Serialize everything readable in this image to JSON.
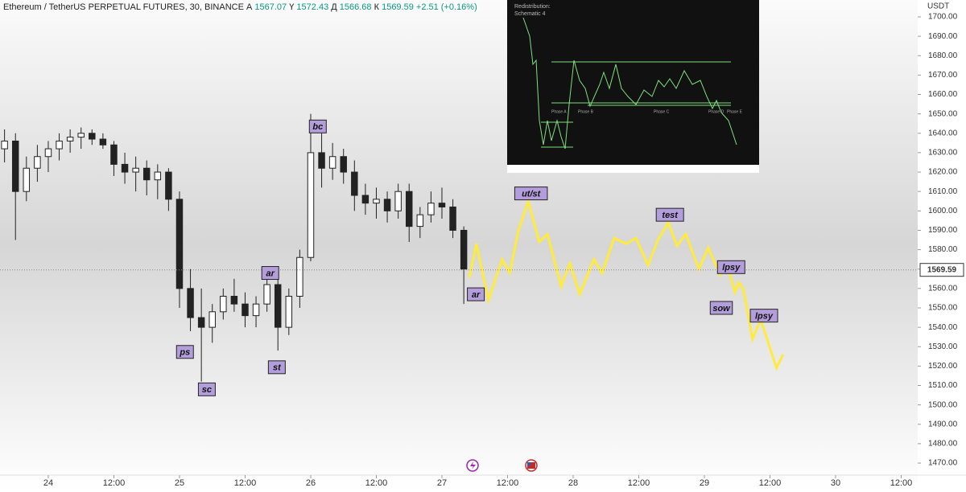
{
  "header": {
    "symbol": "Ethereum / TetherUS PERPETUAL FUTURES, 30, BINANCE",
    "fields": [
      {
        "label": "А",
        "value": 1567.07
      },
      {
        "label": "Ү",
        "value": 1572.43
      },
      {
        "label": "Д",
        "value": 1566.68
      },
      {
        "label": "К",
        "value": 1569.59
      }
    ],
    "change": "+2.51 (+0.16%)"
  },
  "inset": {
    "title_lines": [
      "Redistribution:",
      "Schematic 4"
    ],
    "phases": [
      "Phase A",
      "Phase B",
      "Phase C",
      "Phase D",
      "Phase E"
    ]
  },
  "chart_data": {
    "type": "candlestick",
    "currency": "USDT",
    "last_price": 1569.59,
    "x": [
      -8,
      -6,
      -4,
      -2,
      0,
      2,
      4,
      6,
      8,
      10,
      12,
      14,
      16,
      18,
      20,
      22,
      24,
      26,
      28,
      30,
      32,
      34,
      36,
      38,
      40,
      42,
      44,
      46,
      48,
      50,
      52,
      54,
      56,
      58,
      60,
      62,
      64,
      66,
      68,
      70,
      72,
      74,
      76
    ],
    "open": [
      1632,
      1636,
      1610,
      1622,
      1628,
      1632,
      1636,
      1638,
      1640,
      1637,
      1634,
      1624,
      1620,
      1622,
      1616,
      1620,
      1606,
      1560,
      1545,
      1540,
      1548,
      1556,
      1552,
      1546,
      1552,
      1562,
      1540,
      1556,
      1576,
      1630,
      1622,
      1628,
      1620,
      1608,
      1604,
      1606,
      1600,
      1610,
      1592,
      1598,
      1604,
      1602,
      1590
    ],
    "high": [
      1642,
      1640,
      1628,
      1634,
      1636,
      1640,
      1642,
      1643,
      1642,
      1640,
      1636,
      1630,
      1628,
      1626,
      1624,
      1622,
      1610,
      1570,
      1560,
      1552,
      1560,
      1565,
      1558,
      1556,
      1568,
      1566,
      1560,
      1580,
      1650,
      1640,
      1635,
      1632,
      1626,
      1614,
      1612,
      1610,
      1614,
      1614,
      1602,
      1610,
      1612,
      1606,
      1592
    ],
    "low": [
      1625,
      1585,
      1605,
      1615,
      1620,
      1626,
      1630,
      1632,
      1634,
      1632,
      1618,
      1614,
      1610,
      1608,
      1606,
      1600,
      1550,
      1538,
      1512,
      1532,
      1544,
      1548,
      1540,
      1540,
      1548,
      1528,
      1536,
      1550,
      1574,
      1612,
      1616,
      1614,
      1600,
      1598,
      1596,
      1594,
      1596,
      1584,
      1586,
      1594,
      1596,
      1586,
      1552
    ],
    "close": [
      1636,
      1610,
      1622,
      1628,
      1632,
      1636,
      1638,
      1640,
      1637,
      1634,
      1624,
      1620,
      1622,
      1616,
      1620,
      1606,
      1560,
      1545,
      1540,
      1548,
      1556,
      1552,
      1546,
      1552,
      1562,
      1540,
      1556,
      1576,
      1630,
      1622,
      1628,
      1620,
      1608,
      1604,
      1606,
      1600,
      1610,
      1592,
      1598,
      1604,
      1602,
      1590,
      1570
    ],
    "color": "#222222",
    "projection": {
      "color": "#ffeb3b",
      "x": [
        77.0,
        78.3,
        80.5,
        83.0,
        84.4,
        86.0,
        87.8,
        89.8,
        91.3,
        93.8,
        95.4,
        97.2,
        99.8,
        101.3,
        103.5,
        105.7,
        107.5,
        109.7,
        111.5,
        113.4,
        115.0,
        116.6,
        119.0,
        120.7,
        122.9,
        124.1,
        125.6,
        126.3,
        127.1,
        128.8,
        130.3,
        133.2,
        134.4
      ],
      "values": [
        1565.5,
        1583,
        1554,
        1575,
        1568,
        1590,
        1605,
        1584,
        1588,
        1561,
        1573,
        1557,
        1575,
        1568,
        1586,
        1583,
        1586,
        1572,
        1585,
        1594,
        1582,
        1588,
        1570,
        1581,
        1567,
        1573,
        1558,
        1563,
        1560,
        1534,
        1544,
        1519,
        1526
      ]
    },
    "annotations": [
      {
        "text": "ps",
        "x": 25.0,
        "y": 1527.3
      },
      {
        "text": "sc",
        "x": 29.0,
        "y": 1508
      },
      {
        "text": "ar",
        "x": 40.6,
        "y": 1568
      },
      {
        "text": "st",
        "x": 41.8,
        "y": 1519.4
      },
      {
        "text": "bc",
        "x": 49.3,
        "y": 1643.5
      },
      {
        "text": "ar",
        "x": 78.2,
        "y": 1557
      },
      {
        "text": "ut/st",
        "x": 88.3,
        "y": 1609
      },
      {
        "text": "test",
        "x": 113.7,
        "y": 1598
      },
      {
        "text": "lpsy",
        "x": 124.9,
        "y": 1571
      },
      {
        "text": "sow",
        "x": 123.1,
        "y": 1550
      },
      {
        "text": "lpsy",
        "x": 130.9,
        "y": 1546
      }
    ],
    "annotation_color": "#b39ddb",
    "xlim": [
      -8.83,
      159.02
    ],
    "ylim": [
      1463.8,
      1708.7
    ],
    "xticks": [
      {
        "value": 0,
        "label": "24"
      },
      {
        "value": 12,
        "label": "12:00"
      },
      {
        "value": 24,
        "label": "25"
      },
      {
        "value": 36,
        "label": "12:00"
      },
      {
        "value": 48,
        "label": "26"
      },
      {
        "value": 60,
        "label": "12:00"
      },
      {
        "value": 72,
        "label": "27"
      },
      {
        "value": 84,
        "label": "12:00"
      },
      {
        "value": 96,
        "label": "28"
      },
      {
        "value": 108,
        "label": "12:00"
      },
      {
        "value": 120,
        "label": "29"
      },
      {
        "value": 132,
        "label": "12:00"
      },
      {
        "value": 144,
        "label": "30"
      },
      {
        "value": 156,
        "label": "12:00"
      }
    ],
    "yticks": [
      {
        "value": 1470,
        "label": "1470.00"
      },
      {
        "value": 1480,
        "label": "1480.00"
      },
      {
        "value": 1490,
        "label": "1490.00"
      },
      {
        "value": 1500,
        "label": "1500.00"
      },
      {
        "value": 1510,
        "label": "1510.00"
      },
      {
        "value": 1520,
        "label": "1520.00"
      },
      {
        "value": 1530,
        "label": "1530.00"
      },
      {
        "value": 1540,
        "label": "1540.00"
      },
      {
        "value": 1550,
        "label": "1550.00"
      },
      {
        "value": 1560,
        "label": "1560.00"
      },
      {
        "value": 1570,
        "label": "1570.00"
      },
      {
        "value": 1580,
        "label": "1580.00"
      },
      {
        "value": 1590,
        "label": "1590.00"
      },
      {
        "value": 1600,
        "label": "1600.00"
      },
      {
        "value": 1610,
        "label": "1610.00"
      },
      {
        "value": 1620,
        "label": "1620.00"
      },
      {
        "value": 1630,
        "label": "1630.00"
      },
      {
        "value": 1640,
        "label": "1640.00"
      },
      {
        "value": 1650,
        "label": "1650.00"
      },
      {
        "value": 1660,
        "label": "1660.00"
      },
      {
        "value": 1670,
        "label": "1670.00"
      },
      {
        "value": 1680,
        "label": "1680.00"
      },
      {
        "value": 1690,
        "label": "1690.00"
      },
      {
        "value": 1700,
        "label": "1700.00"
      }
    ],
    "grid": false
  }
}
